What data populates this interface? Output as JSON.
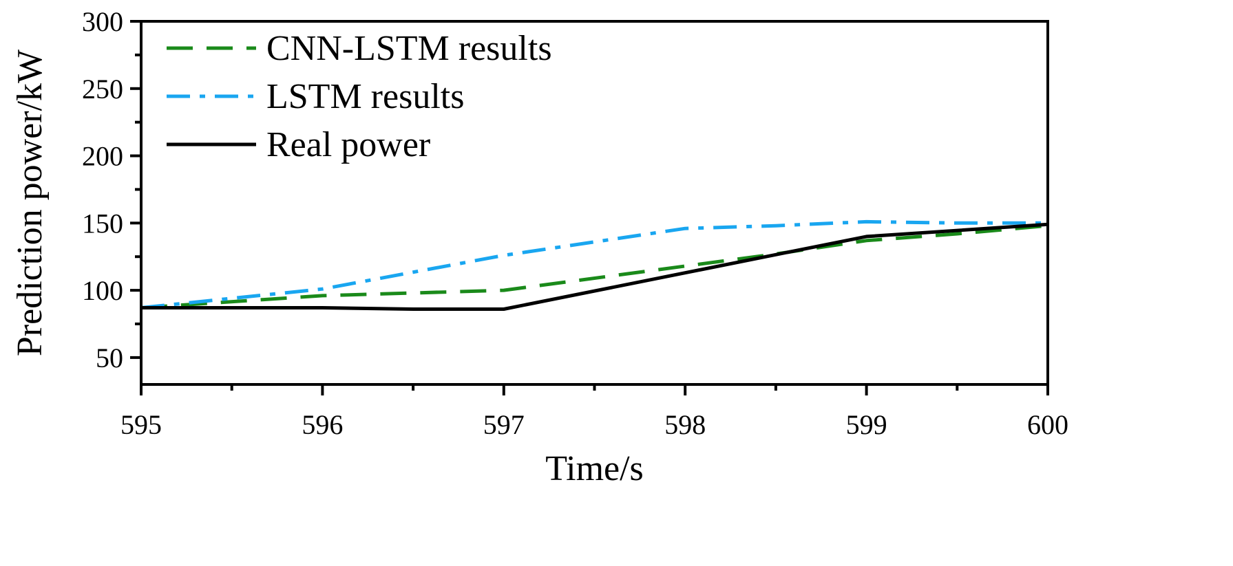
{
  "chart_data": {
    "type": "line",
    "title": "",
    "xlabel": "Time/s",
    "ylabel": "Prediction power/kW",
    "xlim": [
      595,
      600
    ],
    "ylim": [
      30,
      300
    ],
    "x_ticks": [
      595,
      596,
      597,
      598,
      599,
      600
    ],
    "y_ticks": [
      50,
      100,
      150,
      200,
      250,
      300
    ],
    "grid": false,
    "legend_position": "top-left",
    "series": [
      {
        "name": "CNN-LSTM results",
        "color": "#1a8a1a",
        "style": "dashed",
        "x": [
          595,
          596,
          596.5,
          597,
          598,
          598.5,
          599,
          599.5,
          600
        ],
        "y": [
          87,
          96,
          98,
          100,
          118,
          127,
          137,
          142,
          148
        ]
      },
      {
        "name": "LSTM results",
        "color": "#19a6f0",
        "style": "dashdot",
        "x": [
          595,
          595.5,
          596,
          597,
          598,
          598.5,
          599,
          599.5,
          600
        ],
        "y": [
          87,
          94,
          101,
          126,
          146,
          148,
          151,
          150,
          150
        ]
      },
      {
        "name": "Real power",
        "color": "#000000",
        "style": "solid",
        "x": [
          595,
          596,
          596.5,
          597,
          598,
          599,
          600
        ],
        "y": [
          87,
          87,
          86,
          86,
          113,
          140,
          149
        ]
      }
    ]
  }
}
